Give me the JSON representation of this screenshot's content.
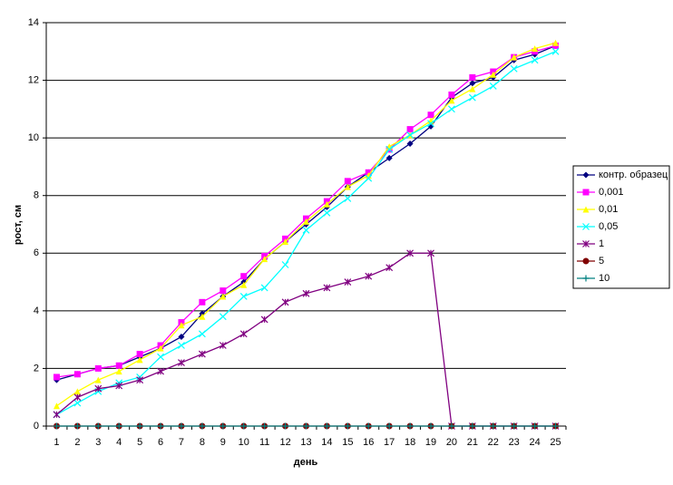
{
  "chart_data": {
    "type": "line",
    "y_label": "рост, см",
    "x_label": "день",
    "categories": [
      1,
      2,
      3,
      4,
      5,
      6,
      7,
      8,
      9,
      10,
      11,
      12,
      13,
      14,
      15,
      16,
      17,
      18,
      19,
      20,
      21,
      22,
      23,
      24,
      25
    ],
    "ylim": [
      0,
      14
    ],
    "yticks": [
      0,
      2,
      4,
      6,
      8,
      10,
      12,
      14
    ],
    "grid": true,
    "legend": "right",
    "series": [
      {
        "name": "контр. образец",
        "color": "#000080",
        "marker": "diamond",
        "values": [
          1.6,
          1.8,
          2.0,
          2.1,
          2.4,
          2.7,
          3.1,
          3.9,
          4.5,
          5.0,
          5.8,
          6.4,
          7.0,
          7.6,
          8.3,
          8.8,
          9.3,
          9.8,
          10.4,
          11.4,
          11.9,
          12.1,
          12.7,
          12.9,
          13.2
        ]
      },
      {
        "name": "0,001",
        "color": "#ff00ff",
        "marker": "square",
        "values": [
          1.7,
          1.8,
          2.0,
          2.1,
          2.5,
          2.8,
          3.6,
          4.3,
          4.7,
          5.2,
          5.9,
          6.5,
          7.2,
          7.8,
          8.5,
          8.8,
          9.6,
          10.3,
          10.8,
          11.5,
          12.1,
          12.3,
          12.8,
          13.0,
          13.2
        ]
      },
      {
        "name": "0,01",
        "color": "#ffff00",
        "marker": "triangle",
        "values": [
          0.7,
          1.2,
          1.6,
          1.9,
          2.3,
          2.7,
          3.5,
          3.8,
          4.5,
          4.9,
          5.8,
          6.4,
          7.1,
          7.7,
          8.3,
          8.7,
          9.7,
          10.1,
          10.6,
          11.3,
          11.7,
          12.2,
          12.8,
          13.1,
          13.3
        ]
      },
      {
        "name": "0,05",
        "color": "#00ffff",
        "marker": "x",
        "values": [
          0.4,
          0.8,
          1.2,
          1.5,
          1.7,
          2.4,
          2.8,
          3.2,
          3.8,
          4.5,
          4.8,
          5.6,
          6.8,
          7.4,
          7.9,
          8.6,
          9.6,
          10.1,
          10.5,
          11.0,
          11.4,
          11.8,
          12.4,
          12.7,
          13.0
        ]
      },
      {
        "name": "1",
        "color": "#800080",
        "marker": "star",
        "values": [
          0.4,
          1.0,
          1.3,
          1.4,
          1.6,
          1.9,
          2.2,
          2.5,
          2.8,
          3.2,
          3.7,
          4.3,
          4.6,
          4.8,
          5.0,
          5.2,
          5.5,
          6.0,
          6.0,
          0,
          0,
          0,
          0,
          0,
          0
        ]
      },
      {
        "name": "5",
        "color": "#800000",
        "marker": "circle",
        "values": [
          0,
          0,
          0,
          0,
          0,
          0,
          0,
          0,
          0,
          0,
          0,
          0,
          0,
          0,
          0,
          0,
          0,
          0,
          0,
          0,
          0,
          0,
          0,
          0,
          0
        ]
      },
      {
        "name": "10",
        "color": "#008080",
        "marker": "plus",
        "values": [
          0,
          0,
          0,
          0,
          0,
          0,
          0,
          0,
          0,
          0,
          0,
          0,
          0,
          0,
          0,
          0,
          0,
          0,
          0,
          0,
          0,
          0,
          0,
          0,
          0
        ]
      }
    ]
  }
}
